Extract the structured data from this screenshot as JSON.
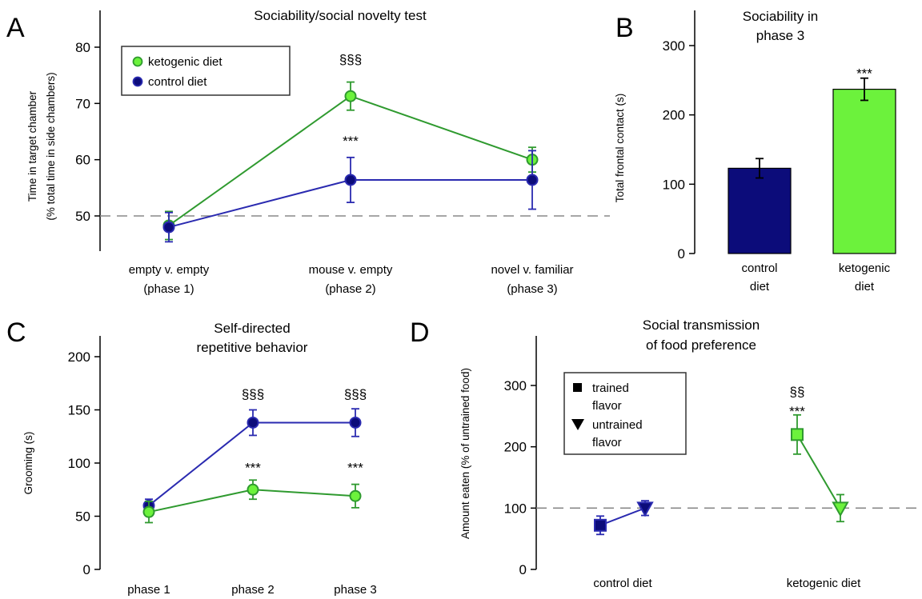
{
  "colors": {
    "ketogenic_line": "#2f9a2f",
    "ketogenic_fill": "#6cf23c",
    "control_line": "#2a2ab0",
    "control_fill": "#0c0c7a"
  },
  "chart_data": [
    {
      "panel": "A",
      "type": "line",
      "title": "Sociability/social novelty test",
      "ylabel_line1": "Time in target chamber",
      "ylabel_line2": "(% total time in side chambers)",
      "xlabel": "",
      "categories_line1": [
        "empty v. empty",
        "mouse v. empty",
        "novel v. familiar"
      ],
      "categories_line2": [
        "(phase 1)",
        "(phase 2)",
        "(phase 3)"
      ],
      "ylim": [
        45,
        85
      ],
      "yticks": [
        50,
        60,
        70,
        80
      ],
      "reference_line": 50,
      "legend": {
        "position": "top-left",
        "entries": [
          "ketogenic diet",
          "control diet"
        ]
      },
      "series": [
        {
          "name": "ketogenic diet",
          "values": [
            48.3,
            71.3,
            60.0
          ],
          "err": [
            2.5,
            2.5,
            2.2
          ]
        },
        {
          "name": "control diet",
          "values": [
            48.0,
            56.4,
            56.4
          ],
          "err": [
            2.6,
            4.0,
            5.2
          ]
        }
      ],
      "annotations": [
        {
          "text": "§§§",
          "x": 1,
          "y": 77.0
        },
        {
          "text": "***",
          "x": 1,
          "y": 62.5
        }
      ]
    },
    {
      "panel": "B",
      "type": "bar",
      "title_line1": "Sociability in",
      "title_line2": "phase 3",
      "ylabel": "Total frontal contact (s)",
      "categories_line1": [
        "control",
        "ketogenic"
      ],
      "categories_line2": [
        "diet",
        "diet"
      ],
      "values": [
        123,
        237
      ],
      "err": [
        14,
        16
      ],
      "ylim": [
        0,
        350
      ],
      "yticks": [
        0,
        100,
        200,
        300
      ],
      "annotations": [
        {
          "text": "***",
          "x": 1,
          "y": 260
        }
      ]
    },
    {
      "panel": "C",
      "type": "line",
      "title_line1": "Self-directed",
      "title_line2": "repetitive behavior",
      "ylabel": "Grooming (s)",
      "categories": [
        "phase 1",
        "phase 2",
        "phase 3"
      ],
      "ylim": [
        0,
        225
      ],
      "yticks": [
        0,
        50,
        100,
        150,
        200
      ],
      "series": [
        {
          "name": "ketogenic diet",
          "values": [
            54,
            75,
            69
          ],
          "err": [
            10,
            9,
            11
          ]
        },
        {
          "name": "control diet",
          "values": [
            60,
            138,
            138
          ],
          "err": [
            6,
            12,
            13
          ]
        }
      ],
      "annotations": [
        {
          "text": "§§§",
          "x": 1,
          "y": 165
        },
        {
          "text": "§§§",
          "x": 2,
          "y": 165
        },
        {
          "text": "***",
          "x": 1,
          "y": 96
        },
        {
          "text": "***",
          "x": 2,
          "y": 96
        }
      ]
    },
    {
      "panel": "D",
      "type": "line",
      "title_line1": "Social transmission",
      "title_line2": "of food preference",
      "ylabel": "Amount eaten (% of untrained food)",
      "categories": [
        "control diet",
        "ketogenic diet"
      ],
      "ylim": [
        0,
        390
      ],
      "yticks": [
        0,
        100,
        200,
        300
      ],
      "reference_line": 100,
      "legend": {
        "position": "top-left",
        "entries": [
          {
            "line1": "trained",
            "line2": "flavor",
            "marker": "square"
          },
          {
            "line1": "untrained",
            "line2": "flavor",
            "marker": "triangle-down"
          }
        ]
      },
      "groups": [
        {
          "name": "control diet",
          "trained": 72,
          "trained_err": 15,
          "untrained": 100,
          "untrained_err": 12
        },
        {
          "name": "ketogenic diet",
          "trained": 220,
          "trained_err": 32,
          "untrained": 100,
          "untrained_err": 22
        }
      ],
      "annotations": [
        {
          "text": "§§",
          "x": 1,
          "y": 290
        },
        {
          "text": "***",
          "x": 1,
          "y": 258
        }
      ]
    }
  ]
}
